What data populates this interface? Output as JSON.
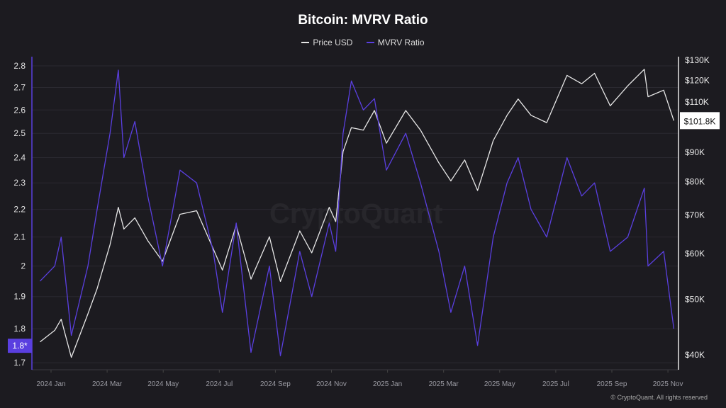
{
  "chart_data": {
    "type": "line",
    "title": "Bitcoin: MVRV Ratio",
    "legend_position": "top",
    "grid": true,
    "watermark": "CryptoQuant",
    "copyright": "© CryptoQuant. All rights reserved",
    "x_ticks": [
      "2024 Jan",
      "2024 Mar",
      "2024 May",
      "2024 Jul",
      "2024 Sep",
      "2024 Nov",
      "2025 Jan",
      "2025 Mar",
      "2025 May",
      "2025 Jul",
      "2025 Sep",
      "2025 Nov"
    ],
    "left_axis": {
      "scale": "log",
      "range": [
        1.68,
        2.85
      ],
      "ticks": [
        "2.8",
        "2.7",
        "2.6",
        "2.5",
        "2.4",
        "2.3",
        "2.2",
        "2.1",
        "2",
        "1.9",
        "1.8",
        "1.7"
      ],
      "current_label": "1.8*"
    },
    "right_axis": {
      "scale": "log",
      "range": [
        37,
        132
      ],
      "ticks": [
        {
          "v": 130,
          "label": "$130K"
        },
        {
          "v": 120,
          "label": "$120K"
        },
        {
          "v": 110,
          "label": "$110K"
        },
        {
          "v": 90,
          "label": "$90K"
        },
        {
          "v": 80,
          "label": "$80K"
        },
        {
          "v": 70,
          "label": "$70K"
        },
        {
          "v": 60,
          "label": "$60K"
        },
        {
          "v": 50,
          "label": "$50K"
        },
        {
          "v": 40,
          "label": "$40K"
        }
      ],
      "current_label": "$101.8K"
    },
    "x": [
      "2023-12-20",
      "2024-01-05",
      "2024-01-12",
      "2024-01-23",
      "2024-02-10",
      "2024-02-20",
      "2024-03-05",
      "2024-03-14",
      "2024-03-20",
      "2024-04-01",
      "2024-04-15",
      "2024-05-01",
      "2024-05-20",
      "2024-06-07",
      "2024-06-25",
      "2024-07-05",
      "2024-07-20",
      "2024-08-05",
      "2024-08-25",
      "2024-09-06",
      "2024-09-27",
      "2024-10-10",
      "2024-10-29",
      "2024-11-05",
      "2024-11-13",
      "2024-11-22",
      "2024-12-05",
      "2024-12-17",
      "2024-12-30",
      "2025-01-20",
      "2025-02-05",
      "2025-02-25",
      "2025-03-10",
      "2025-03-25",
      "2025-04-08",
      "2025-04-25",
      "2025-05-10",
      "2025-05-22",
      "2025-06-05",
      "2025-06-22",
      "2025-07-14",
      "2025-07-30",
      "2025-08-13",
      "2025-08-30",
      "2025-09-18",
      "2025-10-06",
      "2025-10-10",
      "2025-10-27",
      "2025-11-07"
    ],
    "series": [
      {
        "name": "Price USD",
        "axis": "right",
        "color": "#e6e6e6",
        "unit": "K USD",
        "values": [
          42,
          44,
          46,
          39.5,
          47,
          52,
          62,
          72,
          66,
          69,
          63,
          58,
          70,
          71,
          61,
          56,
          67,
          54,
          64,
          53.5,
          65.5,
          60,
          72,
          68,
          90,
          99,
          98,
          106,
          93,
          106,
          98,
          86,
          80,
          87,
          77,
          94,
          104,
          111,
          104,
          101,
          122,
          118,
          123,
          108,
          117,
          125,
          112,
          115,
          101.8
        ]
      },
      {
        "name": "MVRV Ratio",
        "axis": "left",
        "color": "#5a3fe0",
        "values": [
          1.95,
          2.0,
          2.1,
          1.78,
          2.0,
          2.2,
          2.5,
          2.78,
          2.4,
          2.55,
          2.25,
          2.0,
          2.35,
          2.3,
          2.05,
          1.85,
          2.15,
          1.73,
          2.0,
          1.72,
          2.05,
          1.9,
          2.15,
          2.05,
          2.5,
          2.73,
          2.6,
          2.65,
          2.35,
          2.5,
          2.3,
          2.05,
          1.85,
          2.0,
          1.75,
          2.1,
          2.3,
          2.4,
          2.2,
          2.1,
          2.4,
          2.25,
          2.3,
          2.05,
          2.1,
          2.28,
          2.0,
          2.05,
          1.8
        ]
      }
    ]
  }
}
